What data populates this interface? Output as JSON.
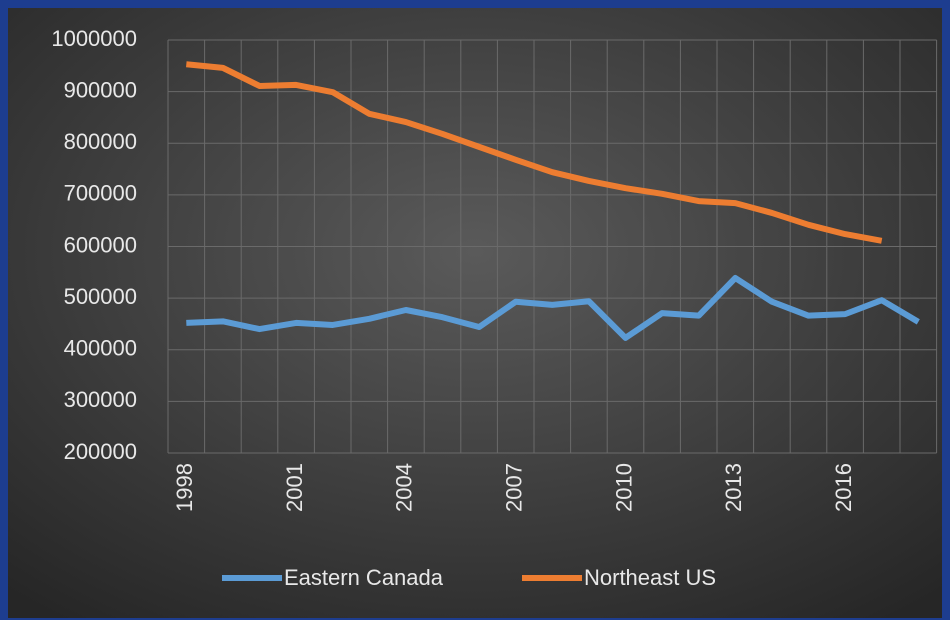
{
  "chart_data": {
    "type": "line",
    "categories": [
      "1998",
      null,
      null,
      "2001",
      null,
      null,
      "2004",
      null,
      null,
      "2007",
      null,
      null,
      "2010",
      null,
      null,
      "2013",
      null,
      null,
      "2016",
      null,
      null
    ],
    "series": [
      {
        "name": "Eastern Canada",
        "color": "#5b9bd5",
        "values": [
          452000,
          455000,
          440000,
          452000,
          448000,
          460000,
          477000,
          463000,
          444000,
          493000,
          487000,
          494000,
          423000,
          471000,
          466000,
          539000,
          493000,
          466000,
          469000,
          496000,
          454000
        ]
      },
      {
        "name": "Northeast US",
        "color": "#ed7d31",
        "values": [
          953000,
          946000,
          911000,
          913000,
          899000,
          857000,
          841000,
          818000,
          793000,
          768000,
          744000,
          727000,
          713000,
          702000,
          688000,
          684000,
          665000,
          642000,
          624000,
          611000,
          null
        ]
      }
    ],
    "ylim": [
      200000,
      1000000
    ],
    "yticks": [
      200000,
      300000,
      400000,
      500000,
      600000,
      700000,
      800000,
      900000,
      1000000
    ],
    "grid": true,
    "legend": "bottom"
  }
}
